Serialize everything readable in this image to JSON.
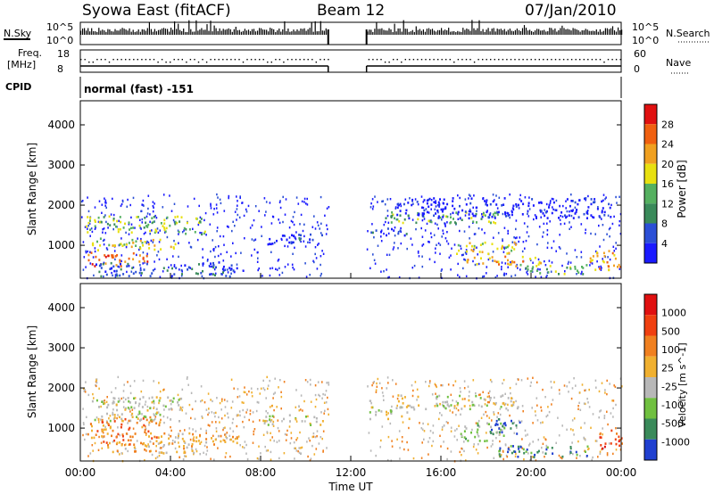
{
  "header": {
    "station": "Syowa East (fitACF)",
    "beam": "Beam 12",
    "date": "07/Jan/2010"
  },
  "top_panels": {
    "nsky_label": "N.Sky",
    "nsearch_label": "N.Search",
    "nsky_ticks": [
      "10^5",
      "10^0"
    ],
    "nsearch_ticks": [
      "10^5",
      "10^0"
    ],
    "freq_label_1": "Freq.",
    "freq_label_2": "[MHz]",
    "freq_ticks": [
      "18",
      "8"
    ],
    "nave_label": "Nave",
    "nave_ticks": [
      "60",
      "0"
    ],
    "cpid_label": "CPID",
    "cpid_value": "normal (fast) -151"
  },
  "colors": {
    "power": [
      "#1a1aff",
      "#2b4fd6",
      "#3a8a5a",
      "#55b060",
      "#e8e010",
      "#f0a020",
      "#f06010",
      "#e01010"
    ],
    "velocity": [
      "#e01010",
      "#f04010",
      "#f08020",
      "#f0b030",
      "#b8b8b8",
      "#70c040",
      "#3a8a5a",
      "#2040d0"
    ]
  },
  "chart_data": [
    {
      "type": "heatmap",
      "title": "Power",
      "ylabel": "Slant Range [km]",
      "xlabel": "Time UT",
      "x_ticks": [
        "00:00",
        "04:00",
        "08:00",
        "12:00",
        "16:00",
        "20:00",
        "00:00"
      ],
      "xlim_hours": [
        0,
        24
      ],
      "y_ticks": [
        1000,
        2000,
        3000,
        4000
      ],
      "ylim": [
        180,
        4600
      ],
      "data_gap_hours": [
        11,
        12.7
      ],
      "colorbar_label": "Power [dB]",
      "colorbar_ticks": [
        "28",
        "24",
        "20",
        "16",
        "12",
        "8",
        "4"
      ],
      "regions": [
        {
          "t0": 0.2,
          "t1": 5.5,
          "r0": 1300,
          "r1": 1750,
          "level": 3
        },
        {
          "t0": 0.5,
          "t1": 4.2,
          "r0": 900,
          "r1": 1200,
          "level": 4
        },
        {
          "t0": 0.3,
          "t1": 3.0,
          "r0": 500,
          "r1": 850,
          "level": 6
        },
        {
          "t0": 0.5,
          "t1": 7.0,
          "r0": 250,
          "r1": 600,
          "level": 1
        },
        {
          "t0": 7.8,
          "t1": 9.5,
          "r0": 1050,
          "r1": 1300,
          "level": 0
        },
        {
          "t0": 9.2,
          "t1": 10.8,
          "r0": 1150,
          "r1": 1300,
          "level": 1
        },
        {
          "t0": 12.8,
          "t1": 14.5,
          "r0": 1250,
          "r1": 1450,
          "level": 1
        },
        {
          "t0": 13.5,
          "t1": 18.5,
          "r0": 1550,
          "r1": 1850,
          "level": 3
        },
        {
          "t0": 16.5,
          "t1": 19.5,
          "r0": 800,
          "r1": 1100,
          "level": 4
        },
        {
          "t0": 17.0,
          "t1": 20.5,
          "r0": 500,
          "r1": 750,
          "level": 5
        },
        {
          "t0": 19.5,
          "t1": 22.5,
          "r0": 300,
          "r1": 550,
          "level": 3
        },
        {
          "t0": 14.0,
          "t1": 23.5,
          "r0": 1700,
          "r1": 2200,
          "level": 0
        },
        {
          "t0": 22.5,
          "t1": 24.0,
          "r0": 400,
          "r1": 900,
          "level": 5
        }
      ]
    },
    {
      "type": "heatmap",
      "title": "Velocity",
      "ylabel": "Slant Range [km]",
      "xlabel": "Time UT",
      "x_ticks": [
        "00:00",
        "04:00",
        "08:00",
        "12:00",
        "16:00",
        "20:00",
        "00:00"
      ],
      "xlim_hours": [
        0,
        24
      ],
      "y_ticks": [
        1000,
        2000,
        3000,
        4000
      ],
      "ylim": [
        180,
        4600
      ],
      "data_gap_hours": [
        11,
        12.7
      ],
      "colorbar_label": "Velocity [m s^-1]",
      "colorbar_ticks": [
        "1000",
        "500",
        "100",
        "25",
        "-25",
        "-100",
        "-500",
        "-1000"
      ],
      "regions": [
        {
          "t0": 0.5,
          "t1": 4.5,
          "r0": 1200,
          "r1": 1800,
          "level": 4
        },
        {
          "t0": 0.3,
          "t1": 3.5,
          "r0": 600,
          "r1": 1300,
          "level": 2
        },
        {
          "t0": 1.0,
          "t1": 5.0,
          "r0": 400,
          "r1": 700,
          "level": 3
        },
        {
          "t0": 3.0,
          "t1": 7.0,
          "r0": 600,
          "r1": 900,
          "level": 3
        },
        {
          "t0": 8.0,
          "t1": 10.8,
          "r0": 1100,
          "r1": 1350,
          "level": 4
        },
        {
          "t0": 12.8,
          "t1": 14.8,
          "r0": 1250,
          "r1": 1550,
          "level": 4
        },
        {
          "t0": 14.0,
          "t1": 19.5,
          "r0": 1500,
          "r1": 1850,
          "level": 4
        },
        {
          "t0": 16.8,
          "t1": 18.8,
          "r0": 700,
          "r1": 1150,
          "level": 5
        },
        {
          "t0": 18.0,
          "t1": 19.5,
          "r0": 850,
          "r1": 1250,
          "level": 7
        },
        {
          "t0": 18.5,
          "t1": 22.5,
          "r0": 300,
          "r1": 600,
          "level": 6
        },
        {
          "t0": 23.0,
          "t1": 24.0,
          "r0": 500,
          "r1": 1000,
          "level": 1
        }
      ]
    }
  ]
}
